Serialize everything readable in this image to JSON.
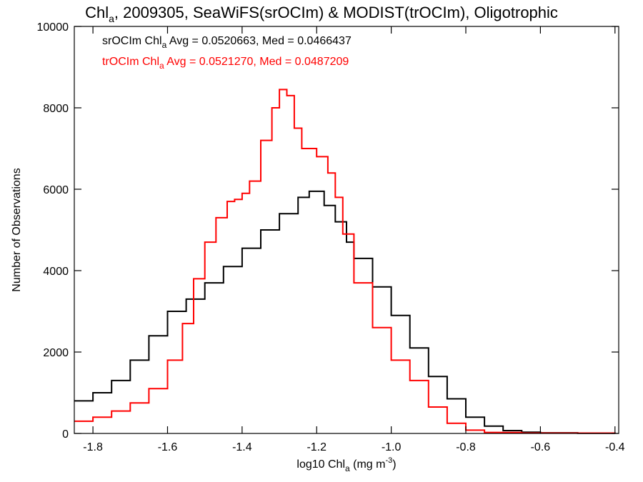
{
  "chart_data": {
    "type": "line",
    "step": true,
    "title": {
      "pre": "Chl",
      "sub": "a",
      "post": ", 2009305, SeaWiFS(srOCIm) & MODIST(trOCIm), Oligotrophic"
    },
    "xlabel": {
      "pre": "log10 Chl",
      "sub": "a",
      "post": " (mg m",
      "sup": "-3",
      "end": ")"
    },
    "ylabel": "Number of Observations",
    "xlim": [
      -1.85,
      -0.39
    ],
    "ylim": [
      0,
      10000
    ],
    "xticks": [
      -1.8,
      -1.6,
      -1.4,
      -1.2,
      -1.0,
      -0.8,
      -0.6,
      -0.4
    ],
    "xticklabels": [
      "-1.8",
      "-1.6",
      "-1.4",
      "-1.2",
      "-1.0",
      "-0.8",
      "-0.6",
      "-0.4"
    ],
    "yticks": [
      0,
      2000,
      4000,
      6000,
      8000,
      10000
    ],
    "yticklabels": [
      "0",
      "2000",
      "4000",
      "6000",
      "8000",
      "10000"
    ],
    "grid": false,
    "annotations": [
      {
        "color": "#000000",
        "pre": "srOCIm Chl",
        "sub": "a",
        "post": " Avg = 0.0520663, Med = 0.0466437"
      },
      {
        "color": "#ff0000",
        "pre": "trOCIm Chl",
        "sub": "a",
        "post": " Avg = 0.0521270, Med = 0.0487209"
      }
    ],
    "series": [
      {
        "color": "#000000",
        "points": [
          [
            -1.85,
            800
          ],
          [
            -1.8,
            1000
          ],
          [
            -1.75,
            1300
          ],
          [
            -1.7,
            1800
          ],
          [
            -1.65,
            2400
          ],
          [
            -1.6,
            3000
          ],
          [
            -1.55,
            3300
          ],
          [
            -1.5,
            3700
          ],
          [
            -1.45,
            4100
          ],
          [
            -1.4,
            4550
          ],
          [
            -1.35,
            5000
          ],
          [
            -1.3,
            5400
          ],
          [
            -1.25,
            5800
          ],
          [
            -1.22,
            5950
          ],
          [
            -1.18,
            5600
          ],
          [
            -1.15,
            5200
          ],
          [
            -1.12,
            4700
          ],
          [
            -1.1,
            4300
          ],
          [
            -1.05,
            3600
          ],
          [
            -1.0,
            2900
          ],
          [
            -0.95,
            2100
          ],
          [
            -0.9,
            1400
          ],
          [
            -0.85,
            850
          ],
          [
            -0.8,
            400
          ],
          [
            -0.75,
            180
          ],
          [
            -0.7,
            70
          ],
          [
            -0.65,
            30
          ],
          [
            -0.6,
            15
          ],
          [
            -0.5,
            5
          ],
          [
            -0.4,
            0
          ]
        ]
      },
      {
        "color": "#ff0000",
        "points": [
          [
            -1.85,
            300
          ],
          [
            -1.8,
            400
          ],
          [
            -1.75,
            550
          ],
          [
            -1.7,
            750
          ],
          [
            -1.65,
            1100
          ],
          [
            -1.6,
            1800
          ],
          [
            -1.56,
            2700
          ],
          [
            -1.53,
            3800
          ],
          [
            -1.5,
            4700
          ],
          [
            -1.47,
            5300
          ],
          [
            -1.44,
            5700
          ],
          [
            -1.42,
            5750
          ],
          [
            -1.4,
            5900
          ],
          [
            -1.38,
            6200
          ],
          [
            -1.35,
            7200
          ],
          [
            -1.32,
            8000
          ],
          [
            -1.3,
            8450
          ],
          [
            -1.28,
            8300
          ],
          [
            -1.26,
            7500
          ],
          [
            -1.24,
            7000
          ],
          [
            -1.2,
            6800
          ],
          [
            -1.17,
            6400
          ],
          [
            -1.15,
            5800
          ],
          [
            -1.13,
            4900
          ],
          [
            -1.1,
            3700
          ],
          [
            -1.05,
            2600
          ],
          [
            -1.0,
            1800
          ],
          [
            -0.95,
            1300
          ],
          [
            -0.9,
            650
          ],
          [
            -0.85,
            250
          ],
          [
            -0.8,
            80
          ],
          [
            -0.75,
            25
          ],
          [
            -0.65,
            8
          ],
          [
            -0.4,
            0
          ]
        ]
      }
    ]
  }
}
